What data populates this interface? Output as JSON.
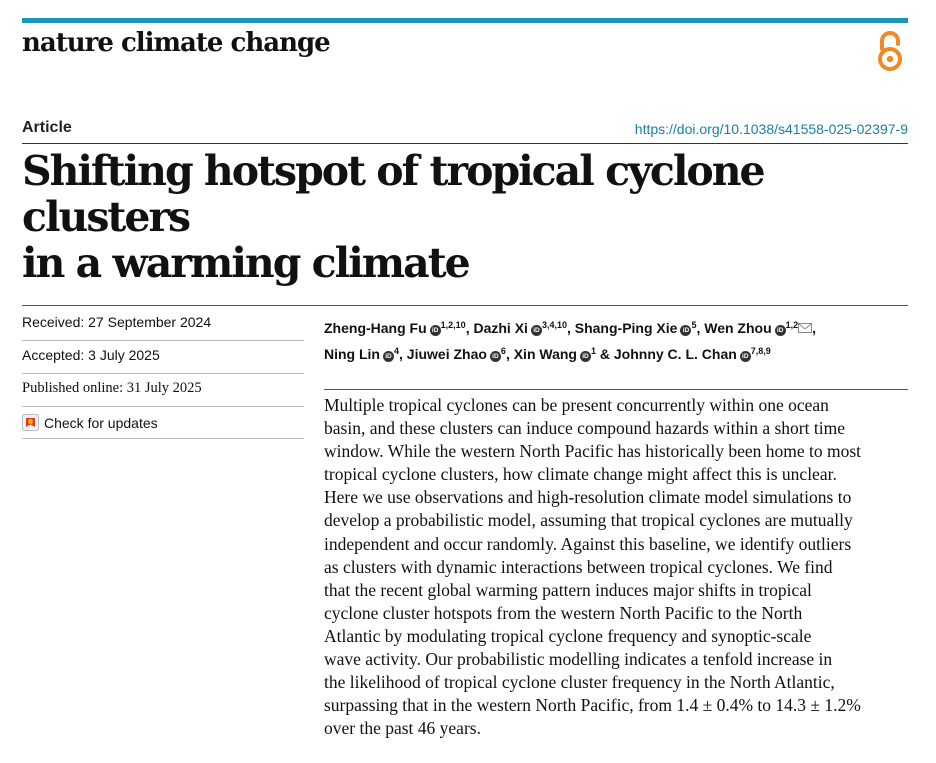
{
  "header": {
    "journal": "nature climate change"
  },
  "article": {
    "type": "Article",
    "doi": "https://doi.org/10.1038/s41558-025-02397-9",
    "title_line1": "Shifting hotspot of tropical cyclone clusters",
    "title_line2": "in a warming climate"
  },
  "history": {
    "received": "Received: 27 September 2024",
    "accepted": "Accepted: 3 July 2025",
    "published": "Published online: 31 July 2025",
    "check_updates": "Check for updates"
  },
  "authors": [
    {
      "name": "Zheng-Hang Fu",
      "aff": "1,2,10"
    },
    {
      "name": "Dazhi Xi",
      "aff": "3,4,10"
    },
    {
      "name": "Shang-Ping Xie",
      "aff": "5"
    },
    {
      "name": "Wen Zhou",
      "aff": "1,2"
    },
    {
      "name": "Ning Lin",
      "aff": "4"
    },
    {
      "name": "Jiuwei Zhao",
      "aff": "6"
    },
    {
      "name": "Xin Wang",
      "aff": "1"
    },
    {
      "name": "Johnny C. L. Chan",
      "aff": "7,8,9"
    }
  ],
  "abstract": "Multiple tropical cyclones can be present concurrently within one ocean\nbasin, and these clusters can induce compound hazards within a short time\nwindow. While the western North Pacific has historically been home to most\ntropical cyclone clusters, how climate change might affect this is unclear.\nHere we use observations and high-resolution climate model simulations to\ndevelop a probabilistic model, assuming that tropical cyclones are mutually\nindependent and occur randomly. Against this baseline, we identify outliers\nas clusters with dynamic interactions between tropical cyclones. We find\nthat the recent global warming pattern induces major shifts in tropical\ncyclone cluster hotspots from the western North Pacific to the North\nAtlantic by modulating tropical cyclone frequency and synoptic-scale\nwave activity. Our probabilistic modelling indicates a tenfold increase in\nthe likelihood of tropical cyclone cluster frequency in the North Atlantic,\nsurpassing that in the western North Pacific, from 1.4 ± 0.4% to 14.3 ± 1.2%\nover the past 46 years.",
  "colors": {
    "accent_bar": "#1a96b8",
    "open_access": "#f08a24",
    "doi_link": "#1a7fa8"
  }
}
